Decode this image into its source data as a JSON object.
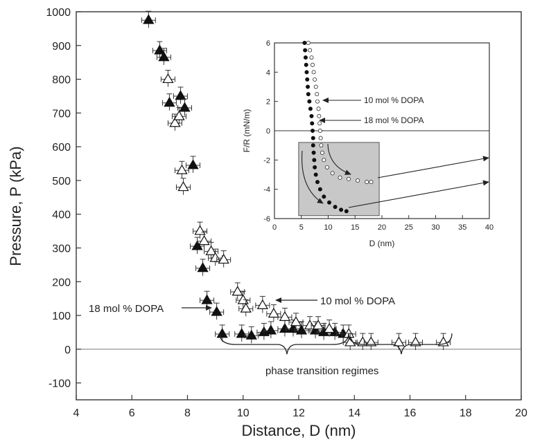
{
  "chart_data": [
    {
      "type": "scatter",
      "title": "",
      "xlabel": "Distance, D (nm)",
      "ylabel": "Pressure, P (kPa)",
      "xlim": [
        4,
        20
      ],
      "ylim": [
        -150,
        1000
      ],
      "xticks": [
        4,
        6,
        8,
        10,
        12,
        14,
        16,
        18,
        20
      ],
      "yticks": [
        -100,
        0,
        100,
        200,
        300,
        400,
        500,
        600,
        700,
        800,
        900,
        1000
      ],
      "grid": false,
      "zero_line": true,
      "series": [
        {
          "name": "18 mol % DOPA",
          "marker": "filled-triangle",
          "color": "#111111",
          "points": [
            [
              6.6,
              975
            ],
            [
              7.0,
              885
            ],
            [
              7.15,
              865
            ],
            [
              7.35,
              730
            ],
            [
              7.75,
              750
            ],
            [
              7.9,
              715
            ],
            [
              8.2,
              545
            ],
            [
              8.35,
              305
            ],
            [
              8.55,
              240
            ],
            [
              8.7,
              145
            ],
            [
              9.05,
              110
            ],
            [
              9.25,
              45
            ],
            [
              9.95,
              45
            ],
            [
              10.3,
              40
            ],
            [
              10.75,
              50
            ],
            [
              11.0,
              55
            ],
            [
              11.5,
              60
            ],
            [
              11.8,
              60
            ],
            [
              12.1,
              55
            ],
            [
              12.6,
              55
            ],
            [
              12.9,
              50
            ],
            [
              13.3,
              50
            ],
            [
              13.6,
              45
            ]
          ]
        },
        {
          "name": "10 mol % DOPA",
          "marker": "open-triangle",
          "color": "#111111",
          "points": [
            [
              7.3,
              800
            ],
            [
              7.55,
              670
            ],
            [
              7.7,
              690
            ],
            [
              7.8,
              530
            ],
            [
              7.85,
              480
            ],
            [
              8.45,
              350
            ],
            [
              8.6,
              320
            ],
            [
              8.85,
              290
            ],
            [
              9.0,
              270
            ],
            [
              9.3,
              265
            ],
            [
              9.8,
              170
            ],
            [
              10.0,
              145
            ],
            [
              10.1,
              120
            ],
            [
              10.7,
              130
            ],
            [
              11.1,
              105
            ],
            [
              11.5,
              95
            ],
            [
              11.9,
              80
            ],
            [
              12.4,
              70
            ],
            [
              12.7,
              70
            ],
            [
              13.1,
              60
            ],
            [
              13.8,
              45
            ],
            [
              13.85,
              20
            ],
            [
              14.3,
              20
            ],
            [
              14.6,
              20
            ],
            [
              15.6,
              20
            ],
            [
              16.2,
              20
            ],
            [
              17.2,
              20
            ]
          ]
        }
      ],
      "annotations": [
        "18 mol % DOPA",
        "10 mol % DOPA",
        "phase transition regimes"
      ]
    },
    {
      "type": "scatter",
      "title": "",
      "xlabel": "D (nm)",
      "ylabel": "F/R (mN/m)",
      "xlim": [
        0,
        40
      ],
      "ylim": [
        -6,
        6
      ],
      "xticks": [
        0,
        5,
        10,
        15,
        20,
        25,
        30,
        35,
        40
      ],
      "yticks": [
        -6,
        -4,
        -2,
        0,
        2,
        4,
        6
      ],
      "grid": false,
      "zero_line": true,
      "series": [
        {
          "name": "18 mol % DOPA",
          "marker": "filled-circle",
          "color": "#111111",
          "points": [
            [
              5.6,
              6.0
            ],
            [
              5.7,
              5.5
            ],
            [
              5.8,
              5.0
            ],
            [
              5.9,
              4.5
            ],
            [
              6.0,
              4.0
            ],
            [
              6.1,
              3.5
            ],
            [
              6.2,
              3.0
            ],
            [
              6.3,
              2.5
            ],
            [
              6.5,
              2.0
            ],
            [
              6.7,
              1.5
            ],
            [
              6.9,
              1.0
            ],
            [
              7.0,
              0.5
            ],
            [
              7.1,
              0.0
            ],
            [
              7.2,
              -0.5
            ],
            [
              7.2,
              -1.0
            ],
            [
              7.3,
              -1.5
            ],
            [
              7.4,
              -2.0
            ],
            [
              7.5,
              -2.5
            ],
            [
              7.7,
              -3.0
            ],
            [
              8.0,
              -3.5
            ],
            [
              8.5,
              -4.0
            ],
            [
              9.2,
              -4.5
            ],
            [
              10.2,
              -4.9
            ],
            [
              11.3,
              -5.2
            ],
            [
              12.4,
              -5.4
            ],
            [
              13.4,
              -5.5
            ]
          ]
        },
        {
          "name": "10 mol % DOPA",
          "marker": "open-circle",
          "color": "#111111",
          "points": [
            [
              6.3,
              6.0
            ],
            [
              6.6,
              5.5
            ],
            [
              6.9,
              5.0
            ],
            [
              7.1,
              4.5
            ],
            [
              7.3,
              4.0
            ],
            [
              7.5,
              3.5
            ],
            [
              7.7,
              3.0
            ],
            [
              7.9,
              2.5
            ],
            [
              8.0,
              2.0
            ],
            [
              8.2,
              1.5
            ],
            [
              8.3,
              1.0
            ],
            [
              8.4,
              0.5
            ],
            [
              8.5,
              0.0
            ],
            [
              8.6,
              -0.5
            ],
            [
              8.7,
              -1.0
            ],
            [
              8.9,
              -1.5
            ],
            [
              9.2,
              -2.0
            ],
            [
              9.8,
              -2.5
            ],
            [
              10.8,
              -2.9
            ],
            [
              12.2,
              -3.2
            ],
            [
              13.8,
              -3.3
            ],
            [
              15.5,
              -3.4
            ],
            [
              17.2,
              -3.5
            ],
            [
              18.0,
              -3.5
            ]
          ]
        }
      ],
      "annotations": [
        "10 mol % DOPA",
        "18 mol % DOPA"
      ]
    }
  ],
  "labels": {
    "main_x": "Distance, D (nm)",
    "main_y": "Pressure, P (kPa)",
    "inset_x": "D (nm)",
    "inset_y": "F/R (mN/m)",
    "annot_18_main": "18 mol % DOPA",
    "annot_10_main": "10 mol % DOPA",
    "annot_phase": "phase transition regimes",
    "annot_10_inset": "10 mol % DOPA",
    "annot_18_inset": "18 mol % DOPA"
  }
}
